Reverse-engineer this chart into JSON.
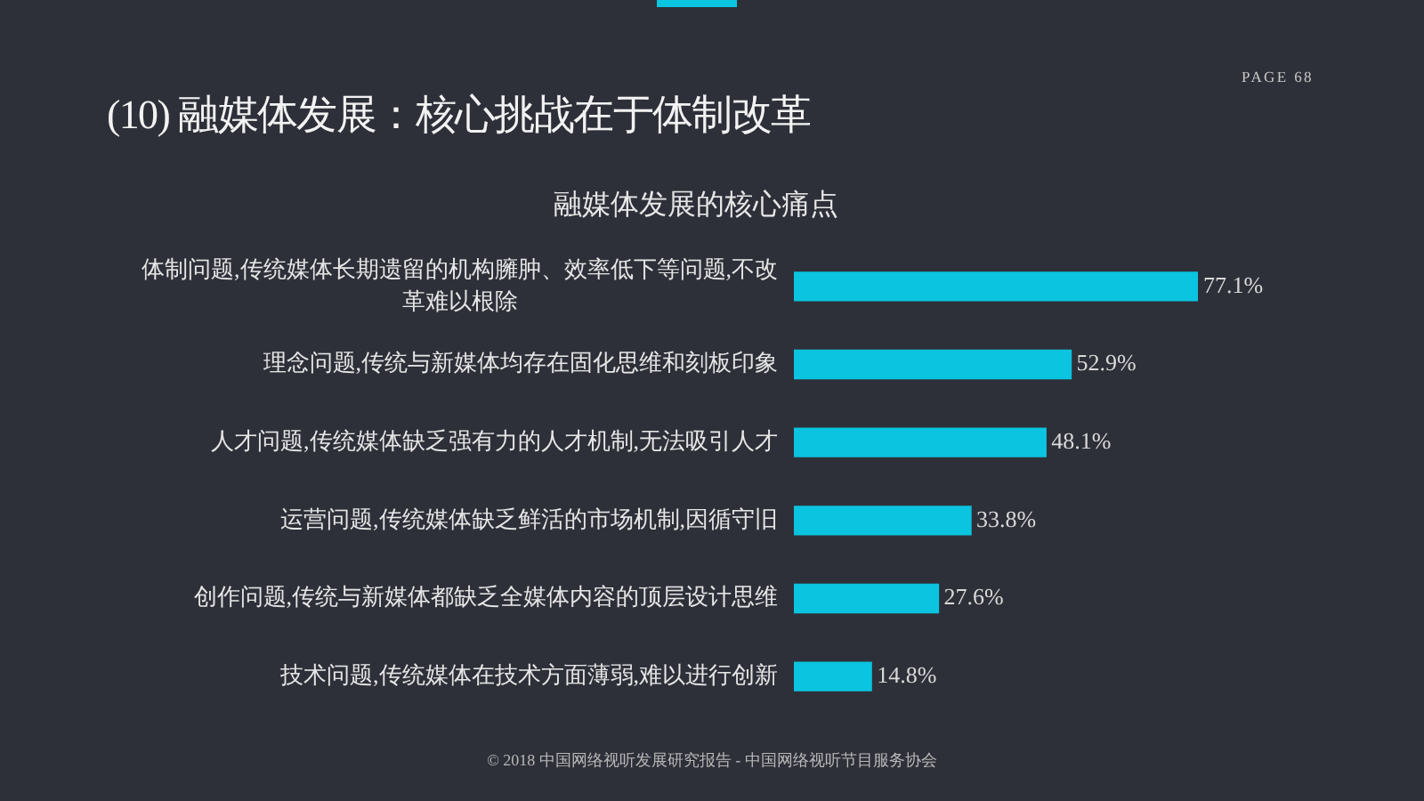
{
  "chart_data": {
    "type": "bar",
    "orientation": "horizontal",
    "title": "(10) 融媒体发展：核心挑战在于体制改革",
    "subtitle": "融媒体发展的核心痛点",
    "categories": [
      "体制问题,传统媒体长期遗留的机构臃肿、效率低下等问题,不改革难以根除",
      "理念问题,传统与新媒体均存在固化思维和刻板印象",
      "人才问题,传统媒体缺乏强有力的人才机制,无法吸引人才",
      "运营问题,传统媒体缺乏鲜活的市场机制,因循守旧",
      "创作问题,传统与新媒体都缺乏全媒体内容的顶层设计思维",
      "技术问题,传统媒体在技术方面薄弱,难以进行创新"
    ],
    "values": [
      77.1,
      52.9,
      48.1,
      33.8,
      27.6,
      14.8
    ],
    "value_labels": [
      "77.1%",
      "52.9%",
      "48.1%",
      "33.8%",
      "27.6%",
      "14.8%"
    ],
    "color": "#0bc4df",
    "annotations": [
      "PAGE 68",
      "© 2018 中国网络视听发展研究报告 - 中国网络视听节目服务协会"
    ]
  }
}
